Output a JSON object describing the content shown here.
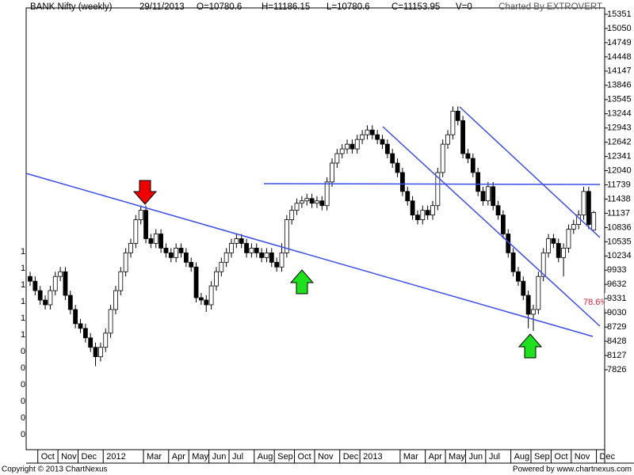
{
  "header": {
    "symbol": "BANK Nifty (weekly)",
    "date": "29/11/2013",
    "open": "O=10780.6",
    "high": "H=11186.15",
    "low": "L=10780.6",
    "close": "C=11153.95",
    "volume": "V=0",
    "credit": "Charted By EXTROVERT"
  },
  "footer": {
    "copyright": "Copyright © 2013 ChartNexus",
    "powered": "Powered by www.chartnexus.com"
  },
  "annotation": "78.6%",
  "chart_data": {
    "type": "candlestick",
    "categories": [
      null,
      null,
      "Oct",
      null,
      null,
      null,
      "Nov",
      null,
      null,
      null,
      "Dec",
      null,
      null,
      null,
      null,
      "2012",
      null,
      null,
      null,
      null,
      null,
      null,
      null,
      "Mar",
      null,
      null,
      null,
      null,
      "Apr",
      null,
      null,
      null,
      "May",
      null,
      null,
      null,
      "Jun",
      null,
      null,
      null,
      "Jul",
      null,
      null,
      null,
      null,
      "Aug",
      null,
      null,
      null,
      "Sep",
      null,
      null,
      null,
      "Oct",
      null,
      null,
      null,
      "Nov",
      null,
      null,
      null,
      null,
      "Dec",
      null,
      null,
      null,
      "2013",
      null,
      null,
      null,
      null,
      null,
      null,
      null,
      "Mar",
      null,
      null,
      null,
      null,
      "Apr",
      null,
      null,
      null,
      "May",
      null,
      null,
      null,
      "Jun",
      null,
      null,
      null,
      "Jul",
      null,
      null,
      null,
      null,
      "Aug",
      null,
      null,
      null,
      "Sep",
      null,
      null,
      null,
      "Oct",
      null,
      null,
      null,
      "Nov",
      null,
      null,
      null,
      null,
      "Dec"
    ],
    "open": [
      9800,
      9700,
      9500,
      9300,
      9200,
      9500,
      9800,
      9900,
      9400,
      9100,
      8800,
      8700,
      8500,
      8300,
      8100,
      8300,
      8600,
      9100,
      9500,
      9900,
      10300,
      10500,
      11000,
      11200,
      10600,
      10500,
      10700,
      10400,
      10300,
      10200,
      10400,
      10300,
      10100,
      10000,
      9350,
      9300,
      9200,
      9600,
      9900,
      10100,
      10300,
      10500,
      10600,
      10500,
      10300,
      10400,
      10300,
      10200,
      10300,
      10100,
      10000,
      10300,
      11000,
      11200,
      11350,
      11400,
      11450,
      11350,
      11400,
      11300,
      11800,
      12200,
      12400,
      12500,
      12600,
      12500,
      12700,
      12800,
      12900,
      12800,
      12700,
      12600,
      12400,
      12200,
      12000,
      11600,
      11400,
      11100,
      11000,
      11200,
      11100,
      11300,
      12000,
      12600,
      12800,
      13300,
      13100,
      12400,
      12300,
      12000,
      11600,
      11400,
      11700,
      11300,
      11100,
      10700,
      10300,
      9900,
      9700,
      9400,
      9000,
      9100,
      9800,
      10300,
      10600,
      10500,
      10200,
      10400,
      10800,
      10900,
      11100,
      11600,
      10780.6,
      null
    ],
    "high": [
      9900,
      9800,
      9600,
      9400,
      9600,
      9900,
      10000,
      10000,
      9500,
      9200,
      8900,
      8800,
      8600,
      8400,
      8400,
      8700,
      9200,
      9600,
      10000,
      10400,
      10600,
      11100,
      11300,
      11300,
      10700,
      10800,
      10800,
      10500,
      10400,
      10500,
      10500,
      10400,
      10200,
      10100,
      9450,
      9400,
      9700,
      10000,
      10200,
      10400,
      10600,
      10700,
      10700,
      10600,
      10500,
      10500,
      10400,
      10400,
      10400,
      10200,
      10500,
      11100,
      11300,
      11450,
      11500,
      11550,
      11550,
      11500,
      11500,
      11900,
      12300,
      12500,
      12600,
      12700,
      12700,
      12800,
      12900,
      13000,
      13000,
      12900,
      12800,
      12700,
      12500,
      12300,
      12100,
      11700,
      11500,
      11200,
      11300,
      11300,
      11400,
      12100,
      12700,
      12900,
      13400,
      13400,
      13200,
      12500,
      12400,
      12100,
      11700,
      11800,
      11800,
      11400,
      11200,
      10800,
      10400,
      10000,
      9800,
      9500,
      9200,
      9900,
      10400,
      10700,
      10700,
      10600,
      10500,
      10900,
      11000,
      11200,
      11700,
      11700,
      11186.15,
      null
    ],
    "low": [
      9600,
      9400,
      9200,
      9100,
      9100,
      9400,
      9700,
      9300,
      9000,
      8700,
      8600,
      8400,
      8200,
      7900,
      8000,
      8200,
      8500,
      9000,
      9400,
      9800,
      10200,
      10400,
      10900,
      10500,
      10400,
      10400,
      10300,
      10200,
      10100,
      10100,
      10200,
      10000,
      9900,
      9250,
      9200,
      9050,
      9100,
      9500,
      9800,
      10000,
      10200,
      10400,
      10400,
      10200,
      10200,
      10200,
      10100,
      10100,
      10000,
      9900,
      9900,
      10200,
      10900,
      11100,
      11250,
      11300,
      11250,
      11250,
      11200,
      11200,
      11700,
      12100,
      12300,
      12400,
      12400,
      12400,
      12600,
      12700,
      12700,
      12600,
      12500,
      12300,
      12100,
      11900,
      11500,
      11300,
      11000,
      10900,
      10900,
      11000,
      11000,
      11200,
      11900,
      12500,
      12700,
      13000,
      12300,
      12200,
      11900,
      11500,
      11300,
      11300,
      11200,
      11000,
      10600,
      10200,
      9800,
      9600,
      9300,
      8700,
      8650,
      9000,
      9700,
      10200,
      10400,
      10100,
      9800,
      10300,
      10700,
      10800,
      11000,
      10800,
      10780.6,
      null
    ],
    "close": [
      9700,
      9500,
      9300,
      9200,
      9500,
      9800,
      9900,
      9400,
      9100,
      8800,
      8700,
      8500,
      8300,
      8100,
      8300,
      8600,
      9100,
      9500,
      9900,
      10300,
      10500,
      11000,
      11200,
      10600,
      10500,
      10700,
      10400,
      10300,
      10200,
      10400,
      10300,
      10100,
      10000,
      9350,
      9300,
      9200,
      9600,
      9900,
      10100,
      10300,
      10500,
      10600,
      10500,
      10300,
      10400,
      10300,
      10200,
      10300,
      10100,
      10000,
      10300,
      11000,
      11200,
      11350,
      11400,
      11450,
      11350,
      11400,
      11300,
      11800,
      12200,
      12400,
      12500,
      12600,
      12500,
      12700,
      12800,
      12900,
      12800,
      12700,
      12600,
      12400,
      12200,
      12000,
      11600,
      11400,
      11100,
      11000,
      11200,
      11100,
      11300,
      12000,
      12600,
      12800,
      13300,
      13100,
      12400,
      12300,
      12000,
      11600,
      11400,
      11700,
      11300,
      11100,
      10700,
      10300,
      9900,
      9700,
      9400,
      9000,
      9100,
      9800,
      10300,
      10600,
      10500,
      10200,
      10400,
      10800,
      10900,
      11100,
      11600,
      10900,
      11153.95,
      null
    ],
    "up_color": "#ffffff",
    "down_color": "#000000",
    "ylim": [
      6133,
      15485
    ],
    "yticks": [
      15351,
      15050,
      14749,
      14448,
      14147,
      13846,
      13545,
      13244,
      12943,
      12642,
      12341,
      12040,
      11739,
      11438,
      11137,
      10836,
      10535,
      10234,
      9933,
      9632,
      9331,
      9030,
      8729,
      8428,
      8127,
      7826
    ],
    "left_axis_labels": [
      "1",
      "1",
      "1",
      "1",
      "1",
      "1",
      "0",
      "0",
      "0",
      "0",
      "0",
      "0"
    ]
  }
}
